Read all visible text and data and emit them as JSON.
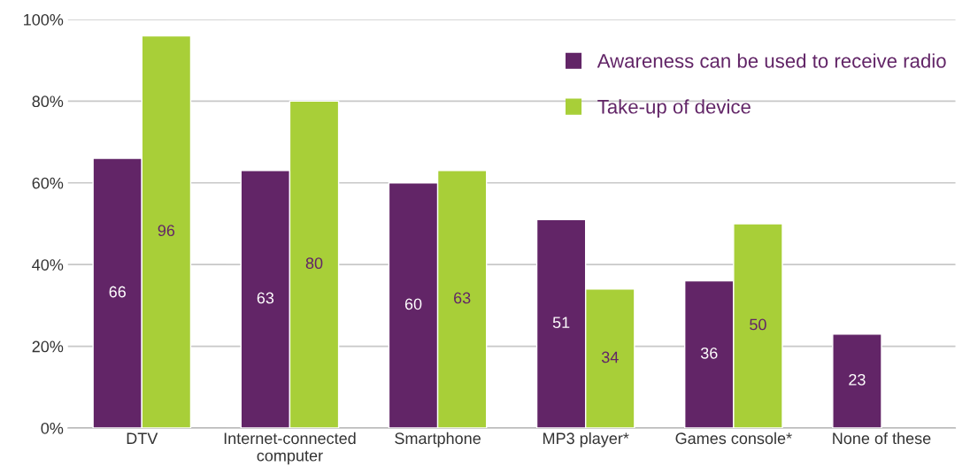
{
  "chart_data": {
    "type": "bar",
    "categories": [
      "DTV",
      "Internet-connected computer",
      "Smartphone",
      "MP3 player*",
      "Games console*",
      "None of these"
    ],
    "series": [
      {
        "name": "Awareness can be used to receive radio",
        "color": "#622567",
        "values": [
          66,
          63,
          60,
          51,
          36,
          23
        ]
      },
      {
        "name": "Take-up of device",
        "color": "#a8cf38",
        "values": [
          96,
          80,
          63,
          34,
          50,
          null
        ]
      }
    ],
    "ylim": [
      0,
      100
    ],
    "yticks": [
      {
        "value": 0,
        "label": "0%"
      },
      {
        "value": 20,
        "label": "20%"
      },
      {
        "value": 40,
        "label": "40%"
      },
      {
        "value": 60,
        "label": "60%"
      },
      {
        "value": 80,
        "label": "80%"
      },
      {
        "value": 100,
        "label": "100%"
      }
    ],
    "grid": "y",
    "legend": "top right",
    "data_labels": true
  }
}
